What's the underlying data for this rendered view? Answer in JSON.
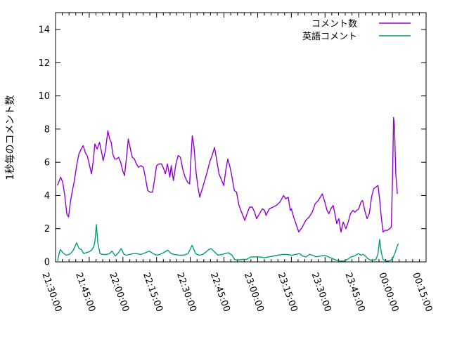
{
  "chart_data": {
    "type": "line",
    "title": "",
    "xlabel": "",
    "ylabel": "1秒毎のコメント数",
    "grid": false,
    "legend_position": "top-right-inside",
    "background_color": "#ffffff",
    "axis_color": "#000000",
    "y_axis": {
      "min": 0,
      "max": 15,
      "tick_labels": [
        0,
        2,
        4,
        6,
        8,
        10,
        12,
        14
      ]
    },
    "x_axis": {
      "start": "21:30:00",
      "end": "00:15:00",
      "major_tick_interval_min": 15,
      "minor_tick_interval_min": 3,
      "tick_labels": [
        "21:30:00",
        "21:45:00",
        "22:00:00",
        "22:15:00",
        "22:30:00",
        "22:45:00",
        "23:00:00",
        "23:15:00",
        "23:30:00",
        "23:45:00",
        "00:00:00",
        "00:15:00"
      ]
    },
    "x_unit": "minutes_after_21:30",
    "series": [
      {
        "name": "コメント数",
        "color": "#9400d3",
        "points": [
          [
            0.8,
            4.6
          ],
          [
            2.3,
            5.1
          ],
          [
            3.2,
            4.8
          ],
          [
            4.1,
            4.0
          ],
          [
            5.0,
            2.9
          ],
          [
            5.8,
            2.7
          ],
          [
            6.6,
            3.6
          ],
          [
            7.5,
            4.3
          ],
          [
            8.4,
            4.9
          ],
          [
            9.4,
            5.8
          ],
          [
            10.4,
            6.5
          ],
          [
            11.4,
            6.8
          ],
          [
            12.3,
            7.0
          ],
          [
            13.2,
            6.6
          ],
          [
            14.1,
            6.4
          ],
          [
            15.0,
            5.9
          ],
          [
            16.0,
            5.3
          ],
          [
            16.8,
            6.1
          ],
          [
            17.5,
            7.1
          ],
          [
            18.5,
            6.8
          ],
          [
            19.6,
            7.2
          ],
          [
            20.5,
            6.6
          ],
          [
            21.2,
            6.1
          ],
          [
            22.2,
            6.7
          ],
          [
            23.3,
            7.9
          ],
          [
            24.1,
            7.4
          ],
          [
            24.8,
            7.2
          ],
          [
            25.5,
            6.5
          ],
          [
            26.3,
            6.2
          ],
          [
            27.2,
            6.2
          ],
          [
            28.1,
            6.3
          ],
          [
            29.0,
            6.0
          ],
          [
            29.9,
            5.5
          ],
          [
            30.7,
            5.2
          ],
          [
            31.6,
            6.3
          ],
          [
            32.4,
            7.4
          ],
          [
            33.3,
            6.8
          ],
          [
            34.2,
            6.3
          ],
          [
            35.1,
            6.2
          ],
          [
            36.0,
            5.9
          ],
          [
            36.9,
            5.7
          ],
          [
            38.0,
            5.8
          ],
          [
            39.1,
            5.7
          ],
          [
            40.1,
            5.0
          ],
          [
            41.0,
            4.3
          ],
          [
            42.1,
            4.2
          ],
          [
            43.2,
            4.2
          ],
          [
            44.1,
            5.0
          ],
          [
            45.0,
            5.8
          ],
          [
            46.1,
            5.9
          ],
          [
            47.2,
            5.9
          ],
          [
            48.2,
            5.6
          ],
          [
            48.9,
            5.3
          ],
          [
            49.8,
            5.9
          ],
          [
            50.9,
            5.1
          ],
          [
            51.5,
            5.8
          ],
          [
            52.5,
            4.9
          ],
          [
            53.6,
            5.9
          ],
          [
            54.6,
            6.4
          ],
          [
            55.6,
            6.3
          ],
          [
            56.6,
            5.6
          ],
          [
            57.7,
            5.1
          ],
          [
            58.8,
            4.8
          ],
          [
            59.7,
            4.7
          ],
          [
            60.4,
            6.5
          ],
          [
            60.9,
            7.6
          ],
          [
            61.6,
            7.0
          ],
          [
            62.5,
            5.5
          ],
          [
            63.4,
            4.5
          ],
          [
            64.2,
            3.9
          ],
          [
            65.3,
            4.4
          ],
          [
            66.4,
            4.9
          ],
          [
            67.5,
            5.4
          ],
          [
            68.6,
            6.0
          ],
          [
            69.7,
            6.4
          ],
          [
            70.8,
            6.9
          ],
          [
            71.8,
            6.1
          ],
          [
            72.8,
            5.3
          ],
          [
            74.0,
            4.9
          ],
          [
            74.9,
            4.6
          ],
          [
            75.9,
            5.6
          ],
          [
            76.7,
            6.2
          ],
          [
            77.7,
            5.7
          ],
          [
            78.6,
            5.1
          ],
          [
            79.6,
            4.3
          ],
          [
            80.6,
            4.2
          ],
          [
            81.7,
            3.4
          ],
          [
            82.8,
            3.0
          ],
          [
            84.3,
            2.5
          ],
          [
            85.5,
            3.0
          ],
          [
            86.4,
            3.3
          ],
          [
            87.6,
            3.3
          ],
          [
            88.6,
            3.0
          ],
          [
            89.5,
            2.6
          ],
          [
            90.8,
            2.9
          ],
          [
            92.1,
            3.2
          ],
          [
            93.1,
            3.1
          ],
          [
            93.7,
            2.8
          ],
          [
            95.2,
            3.2
          ],
          [
            96.8,
            3.3
          ],
          [
            98.3,
            3.4
          ],
          [
            99.9,
            3.6
          ],
          [
            101.5,
            4.0
          ],
          [
            102.5,
            3.8
          ],
          [
            103.6,
            3.9
          ],
          [
            104.5,
            3.1
          ],
          [
            105.0,
            3.2
          ],
          [
            106.0,
            2.7
          ],
          [
            107.3,
            2.2
          ],
          [
            108.3,
            1.8
          ],
          [
            109.9,
            2.1
          ],
          [
            111.4,
            2.5
          ],
          [
            112.9,
            2.7
          ],
          [
            114.3,
            3.0
          ],
          [
            115.6,
            3.5
          ],
          [
            117.0,
            3.7
          ],
          [
            118.8,
            4.1
          ],
          [
            119.9,
            3.6
          ],
          [
            120.9,
            3.1
          ],
          [
            121.7,
            2.9
          ],
          [
            122.6,
            3.2
          ],
          [
            123.6,
            3.4
          ],
          [
            124.4,
            2.9
          ],
          [
            125.2,
            2.3
          ],
          [
            126.1,
            2.6
          ],
          [
            127.1,
            1.8
          ],
          [
            128.1,
            2.4
          ],
          [
            129.3,
            2.0
          ],
          [
            130.3,
            2.4
          ],
          [
            131.3,
            2.9
          ],
          [
            132.4,
            3.1
          ],
          [
            133.3,
            3.0
          ],
          [
            134.1,
            3.1
          ],
          [
            135.0,
            3.2
          ],
          [
            136.0,
            3.6
          ],
          [
            136.7,
            3.7
          ],
          [
            137.7,
            3.1
          ],
          [
            138.7,
            2.6
          ],
          [
            139.7,
            2.9
          ],
          [
            140.7,
            3.9
          ],
          [
            141.6,
            4.4
          ],
          [
            142.6,
            4.5
          ],
          [
            143.6,
            4.6
          ],
          [
            144.2,
            3.9
          ],
          [
            144.9,
            2.9
          ],
          [
            145.8,
            1.8
          ],
          [
            146.8,
            1.9
          ],
          [
            147.8,
            1.9
          ],
          [
            148.8,
            2.0
          ],
          [
            149.5,
            2.1
          ],
          [
            150.1,
            5.3
          ],
          [
            150.5,
            8.7
          ],
          [
            150.9,
            8.2
          ],
          [
            151.5,
            5.3
          ],
          [
            152.2,
            4.1
          ]
        ]
      },
      {
        "name": "英語コメント",
        "color": "#009e73",
        "points": [
          [
            0.9,
            0.05
          ],
          [
            1.6,
            0.5
          ],
          [
            2.1,
            0.75
          ],
          [
            3.3,
            0.55
          ],
          [
            4.7,
            0.4
          ],
          [
            6.0,
            0.45
          ],
          [
            7.0,
            0.55
          ],
          [
            7.9,
            0.7
          ],
          [
            9.4,
            1.15
          ],
          [
            10.5,
            0.8
          ],
          [
            11.5,
            0.75
          ],
          [
            12.5,
            0.5
          ],
          [
            13.6,
            0.55
          ],
          [
            14.8,
            0.6
          ],
          [
            16.0,
            0.7
          ],
          [
            17.0,
            0.9
          ],
          [
            17.6,
            1.3
          ],
          [
            18.2,
            2.25
          ],
          [
            18.8,
            1.2
          ],
          [
            19.8,
            0.5
          ],
          [
            21.0,
            0.45
          ],
          [
            22.5,
            0.45
          ],
          [
            24.0,
            0.5
          ],
          [
            25.1,
            0.65
          ],
          [
            26.6,
            0.35
          ],
          [
            28.0,
            0.55
          ],
          [
            29.2,
            0.8
          ],
          [
            30.5,
            0.45
          ],
          [
            31.5,
            0.4
          ],
          [
            33.0,
            0.45
          ],
          [
            34.5,
            0.5
          ],
          [
            36.0,
            0.5
          ],
          [
            38.0,
            0.45
          ],
          [
            40.0,
            0.55
          ],
          [
            41.7,
            0.65
          ],
          [
            43.5,
            0.5
          ],
          [
            45.0,
            0.4
          ],
          [
            46.5,
            0.45
          ],
          [
            48.0,
            0.55
          ],
          [
            50.0,
            0.7
          ],
          [
            51.5,
            0.5
          ],
          [
            53.0,
            0.45
          ],
          [
            55.1,
            0.4
          ],
          [
            57.0,
            0.4
          ],
          [
            59.0,
            0.5
          ],
          [
            60.8,
            1.0
          ],
          [
            62.4,
            0.5
          ],
          [
            63.9,
            0.4
          ],
          [
            65.5,
            0.45
          ],
          [
            67.0,
            0.6
          ],
          [
            68.3,
            0.75
          ],
          [
            69.3,
            0.8
          ],
          [
            70.8,
            0.6
          ],
          [
            72.3,
            0.4
          ],
          [
            74.0,
            0.45
          ],
          [
            75.5,
            0.5
          ],
          [
            77.0,
            0.55
          ],
          [
            78.6,
            0.4
          ],
          [
            79.7,
            0.15
          ],
          [
            81.0,
            0.1
          ],
          [
            83.0,
            0.15
          ],
          [
            85.0,
            0.15
          ],
          [
            87.0,
            0.3
          ],
          [
            89.0,
            0.3
          ],
          [
            91.0,
            0.3
          ],
          [
            93.0,
            0.25
          ],
          [
            95.0,
            0.3
          ],
          [
            97.0,
            0.35
          ],
          [
            99.0,
            0.4
          ],
          [
            101.0,
            0.45
          ],
          [
            103.0,
            0.45
          ],
          [
            105.0,
            0.4
          ],
          [
            107.0,
            0.45
          ],
          [
            108.6,
            0.5
          ],
          [
            110.0,
            0.35
          ],
          [
            111.5,
            0.3
          ],
          [
            113.0,
            0.45
          ],
          [
            114.5,
            0.4
          ],
          [
            116.0,
            0.3
          ],
          [
            118.0,
            0.35
          ],
          [
            119.9,
            0.4
          ],
          [
            121.5,
            0.3
          ],
          [
            123.3,
            0.2
          ],
          [
            125.0,
            0.1
          ],
          [
            126.5,
            0.05
          ],
          [
            128.4,
            0.05
          ],
          [
            130.0,
            0.15
          ],
          [
            131.5,
            0.3
          ],
          [
            133.0,
            0.35
          ],
          [
            134.9,
            0.5
          ],
          [
            136.0,
            0.4
          ],
          [
            137.0,
            0.45
          ],
          [
            138.0,
            0.35
          ],
          [
            139.0,
            0.2
          ],
          [
            140.2,
            0.1
          ],
          [
            141.5,
            0.1
          ],
          [
            142.7,
            0.15
          ],
          [
            143.6,
            0.5
          ],
          [
            144.3,
            1.35
          ],
          [
            145.0,
            0.6
          ],
          [
            145.8,
            0.15
          ],
          [
            147.0,
            0.05
          ],
          [
            148.2,
            0.05
          ],
          [
            149.3,
            0.1
          ],
          [
            150.3,
            0.25
          ],
          [
            151.3,
            0.6
          ],
          [
            152.0,
            0.9
          ],
          [
            152.6,
            1.1
          ]
        ]
      }
    ]
  }
}
